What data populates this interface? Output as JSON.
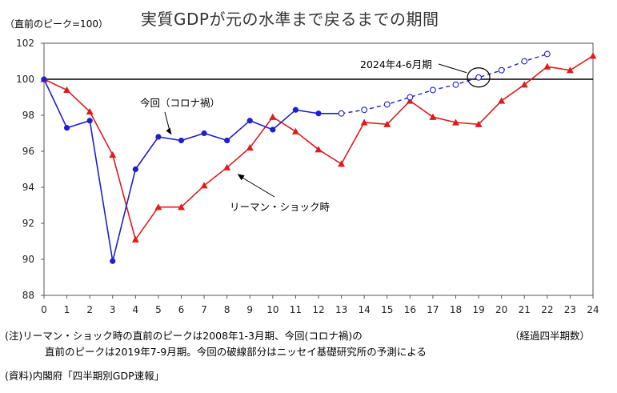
{
  "header": {
    "unit_note": "（直前のピーク=100）",
    "title": "実質GDPが元の水準まで戻るまでの期間"
  },
  "footer": {
    "x_unit": "（経過四半期数）",
    "note_line1": "(注)リーマン・ショック時の直前のピークは2008年1-3月期、今回(コロナ禍)の",
    "note_line2": "直前のピークは2019年7-9月期。今回の破線部分はニッセイ基礎研究所の予測による",
    "source": "(資料)内閣府「四半期別GDP速報」"
  },
  "chart_data": {
    "type": "line",
    "title": "実質GDPが元の水準まで戻るまでの期間",
    "xlabel": "（経過四半期数）",
    "ylabel": "（直前のピーク=100）",
    "x": [
      0,
      1,
      2,
      3,
      4,
      5,
      6,
      7,
      8,
      9,
      10,
      11,
      12,
      13,
      14,
      15,
      16,
      17,
      18,
      19,
      20,
      21,
      22,
      23,
      24
    ],
    "ylim": [
      88,
      102
    ],
    "yticks": [
      88,
      90,
      92,
      94,
      96,
      98,
      100,
      102
    ],
    "grid": false,
    "reference_line": 100,
    "series": [
      {
        "name": "今回（コロナ禍）",
        "color": "#1f1fd1",
        "marker": "circle",
        "actual": {
          "x": [
            0,
            1,
            2,
            3,
            4,
            5,
            6,
            7,
            8,
            9,
            10,
            11,
            12,
            13
          ],
          "y": [
            100,
            97.3,
            97.7,
            89.9,
            95.0,
            96.8,
            96.6,
            97.0,
            96.6,
            97.7,
            97.2,
            98.3,
            98.1,
            98.1
          ]
        },
        "forecast": {
          "x": [
            13,
            14,
            15,
            16,
            17,
            18,
            19,
            20,
            21,
            22
          ],
          "y": [
            98.1,
            98.3,
            98.6,
            99.0,
            99.4,
            99.7,
            100.1,
            100.5,
            101.0,
            101.4
          ]
        }
      },
      {
        "name": "リーマン・ショック時",
        "color": "#e01b1b",
        "marker": "triangle",
        "x": [
          0,
          1,
          2,
          3,
          4,
          5,
          6,
          7,
          8,
          9,
          10,
          11,
          12,
          13,
          14,
          15,
          16,
          17,
          18,
          19,
          20,
          21,
          22,
          23,
          24
        ],
        "y": [
          100,
          99.4,
          98.2,
          95.8,
          91.1,
          92.9,
          92.9,
          94.1,
          95.1,
          96.2,
          97.9,
          97.1,
          96.1,
          95.3,
          97.6,
          97.5,
          98.8,
          97.9,
          97.6,
          97.5,
          98.8,
          99.7,
          100.7,
          100.5,
          101.3
        ]
      }
    ],
    "annotations": [
      {
        "text": "今回（コロナ禍）",
        "series": 0,
        "x": 6
      },
      {
        "text": "リーマン・ショック時",
        "series": 1,
        "x": 8
      },
      {
        "text": "2024年4-6月期",
        "x": 19,
        "y": 100.1
      }
    ]
  }
}
